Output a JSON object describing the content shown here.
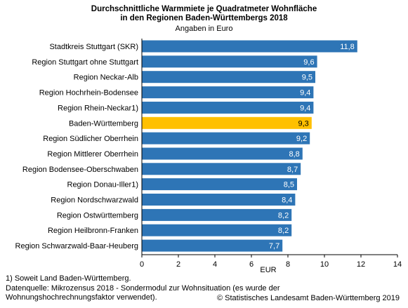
{
  "chart_data": {
    "type": "bar",
    "orientation": "horizontal",
    "title_lines": [
      "Durchschnittliche Warmmiete je Quadratmeter Wohnfläche",
      "in den Regionen Baden-Württembergs 2018"
    ],
    "subtitle": "Angaben in Euro",
    "xlabel": "EUR",
    "xlim": [
      0,
      14
    ],
    "xticks": [
      "0",
      "2",
      "4",
      "6",
      "8",
      "10",
      "12",
      "14"
    ],
    "grid": false,
    "categories": [
      "Stadtkreis Stuttgart (SKR)",
      "Region Stuttgart ohne Stuttgart",
      "Region Neckar-Alb",
      "Region Hochrhein-Bodensee",
      "Region Rhein-Neckar1)",
      "Baden-Württemberg",
      "Region Südlicher Oberrhein",
      "Region Mittlerer Oberrhein",
      "Region Bodensee-Oberschwaben",
      "Region Donau-Iller1)",
      "Region Nordschwarzwald",
      "Region Ostwürttemberg",
      "Region Heilbronn-Franken",
      "Region Schwarzwald-Baar-Heuberg"
    ],
    "values": [
      11.8,
      9.6,
      9.5,
      9.4,
      9.4,
      9.3,
      9.2,
      8.8,
      8.7,
      8.5,
      8.4,
      8.2,
      8.2,
      7.7
    ],
    "value_labels": [
      "11,8",
      "9,6",
      "9,5",
      "9,4",
      "9,4",
      "9,3",
      "9,2",
      "8,8",
      "8,7",
      "8,5",
      "8,4",
      "8,2",
      "8,2",
      "7,7"
    ],
    "highlight_category": "Baden-Württemberg",
    "colors": {
      "bar": "#2e75b6",
      "highlight": "#ffc000",
      "label_on_bar": "#ffffff",
      "label_on_highlight": "#000000"
    }
  },
  "footnotes": [
    "1) Soweit Land Baden-Württemberg.",
    "Datenquelle: Mikrozensus 2018 - Sondermodul zur Wohnsituation (es wurde der Wohnungshochrechnungsfaktor verwendet)."
  ],
  "credit": "© Statistisches Landesamt Baden-Württemberg 2019"
}
